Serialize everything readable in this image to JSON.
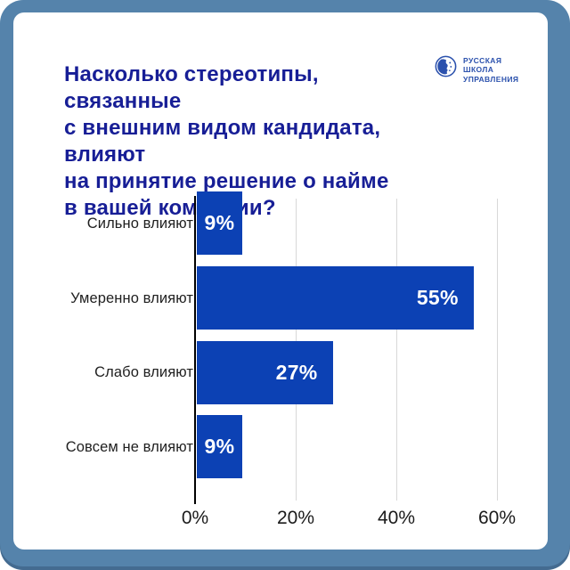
{
  "frame": {
    "outer_color": "#5583ab",
    "card_color": "#ffffff"
  },
  "header": {
    "title": "Насколько стереотипы, связанные\nс внешним видом кандидата, влияют\nна принятие решение о найме\nв вашей компании?",
    "title_color": "#171e96"
  },
  "logo": {
    "lines": [
      "РУССКАЯ",
      "ШКОЛА",
      "УПРАВЛЕНИЯ"
    ],
    "color": "#2b51ad"
  },
  "chart_data": {
    "type": "bar",
    "orientation": "horizontal",
    "title": "Насколько стереотипы, связанные с внешним видом кандидата, влияют на принятие решение о найме в вашей компании?",
    "categories": [
      "Сильно влияют",
      "Умеренно влияют",
      "Слабо влияют",
      "Совсем не влияют"
    ],
    "values": [
      9,
      55,
      27,
      9
    ],
    "value_labels": [
      "9%",
      "55%",
      "27%",
      "9%"
    ],
    "x_ticks": [
      "0%",
      "20%",
      "40%",
      "60%"
    ],
    "x_tick_values": [
      0,
      20,
      40,
      60
    ],
    "xlim": [
      0,
      60
    ],
    "grid": true,
    "bar_color": "#0c41b4",
    "gridline_color": "#d8d8d8",
    "axis_color": "#000000",
    "label_color": "#1f1f1f",
    "value_label_color": "#ffffff"
  }
}
